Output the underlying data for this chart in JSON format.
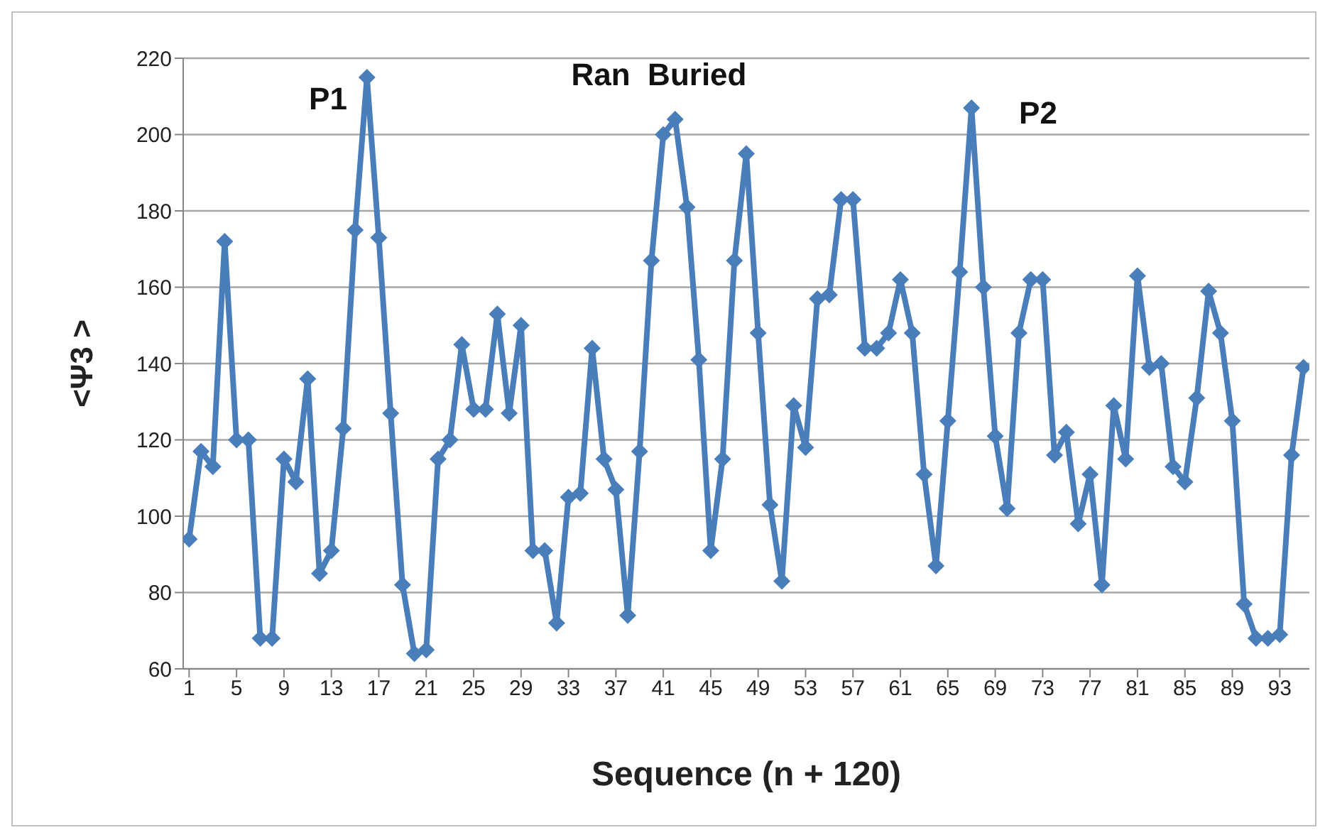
{
  "chart_data": {
    "type": "line",
    "xlabel": "Sequence (n + 120)",
    "ylabel": "<Ψ3 >",
    "x": [
      1,
      2,
      3,
      4,
      5,
      6,
      7,
      8,
      9,
      10,
      11,
      12,
      13,
      14,
      15,
      16,
      17,
      18,
      19,
      20,
      21,
      22,
      23,
      24,
      25,
      26,
      27,
      28,
      29,
      30,
      31,
      32,
      33,
      34,
      35,
      36,
      37,
      38,
      39,
      40,
      41,
      42,
      43,
      44,
      45,
      46,
      47,
      48,
      49,
      50,
      51,
      52,
      53,
      54,
      55,
      56,
      57,
      58,
      59,
      60,
      61,
      62,
      63,
      64,
      65,
      66,
      67,
      68,
      69,
      70,
      71,
      72,
      73,
      74,
      75,
      76,
      77,
      78,
      79,
      80,
      81,
      82,
      83,
      84,
      85,
      86,
      87,
      88,
      89,
      90,
      91,
      92,
      93,
      94,
      95
    ],
    "series": [
      {
        "color": "#4a7ebb",
        "values": [
          94,
          117,
          113,
          172,
          120,
          120,
          68,
          68,
          115,
          109,
          136,
          85,
          91,
          123,
          175,
          215,
          173,
          127,
          82,
          64,
          65,
          115,
          120,
          145,
          128,
          128,
          153,
          127,
          150,
          91,
          91,
          72,
          105,
          106,
          144,
          115,
          107,
          74,
          117,
          167,
          200,
          204,
          181,
          141,
          91,
          115,
          167,
          195,
          148,
          103,
          83,
          129,
          118,
          157,
          158,
          183,
          183,
          144,
          144,
          148,
          162,
          148,
          111,
          87,
          125,
          164,
          207,
          160,
          121,
          102,
          148,
          162,
          162,
          116,
          122,
          98,
          111,
          82,
          129,
          115,
          163,
          139,
          140,
          113,
          109,
          131,
          159,
          148,
          125,
          77,
          68,
          68,
          69,
          116,
          139
        ]
      }
    ],
    "xlim": [
      0.5,
      95.5
    ],
    "xticks": [
      1,
      5,
      9,
      13,
      17,
      21,
      25,
      29,
      33,
      37,
      41,
      45,
      49,
      53,
      57,
      61,
      65,
      69,
      73,
      77,
      81,
      85,
      89,
      93
    ],
    "ylim": [
      60,
      220
    ],
    "yticks": [
      60,
      80,
      100,
      120,
      140,
      160,
      180,
      200,
      220
    ],
    "grid": "y",
    "marker": "diamond",
    "line_style": "solid",
    "legend": false,
    "annotations": [
      "P1",
      "Ran  Buried",
      "P2"
    ]
  }
}
